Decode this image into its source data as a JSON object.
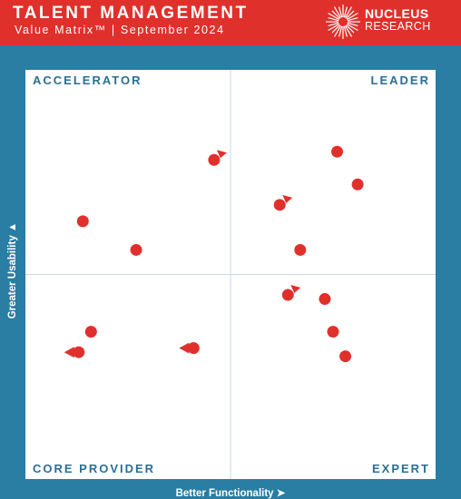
{
  "header": {
    "title": "TALENT MANAGEMENT",
    "subtitle": "Value Matrix™  | September 2024",
    "brand_name": "NUCLEUS",
    "brand_sub": "RESEARCH",
    "brand_icon": "nucleus-logo-icon"
  },
  "colors": {
    "header_bg": "#e0302c",
    "frame_bg": "#2a7da3",
    "quadrant_bg": "#ffffff",
    "label_color": "#2a6f93",
    "dot": "#e0302c"
  },
  "chart_data": {
    "type": "scatter",
    "title": "TALENT MANAGEMENT",
    "subtitle": "Value Matrix™  | September 2024",
    "xlabel": "Better Functionality",
    "ylabel": "Greater Usability",
    "xlim": [
      0,
      10
    ],
    "ylim": [
      0,
      10
    ],
    "grid": false,
    "quadrants": {
      "top_left": "ACCELERATOR",
      "top_right": "LEADER",
      "bottom_left": "CORE PROVIDER",
      "bottom_right": "EXPERT"
    },
    "points": [
      {
        "x": 4.6,
        "y": 7.8,
        "arrow": "up-right"
      },
      {
        "x": 1.4,
        "y": 6.3,
        "arrow": null
      },
      {
        "x": 2.7,
        "y": 5.6,
        "arrow": null
      },
      {
        "x": 7.6,
        "y": 8.0,
        "arrow": null
      },
      {
        "x": 8.1,
        "y": 7.2,
        "arrow": "none"
      },
      {
        "x": 6.2,
        "y": 6.7,
        "arrow": "up-right"
      },
      {
        "x": 6.7,
        "y": 5.6,
        "arrow": null
      },
      {
        "x": 6.4,
        "y": 4.5,
        "arrow": "up-right"
      },
      {
        "x": 7.3,
        "y": 4.4,
        "arrow": null
      },
      {
        "x": 7.5,
        "y": 3.6,
        "arrow": null
      },
      {
        "x": 7.8,
        "y": 3.0,
        "arrow": null
      },
      {
        "x": 1.6,
        "y": 3.6,
        "arrow": null
      },
      {
        "x": 4.1,
        "y": 3.2,
        "arrow": "left"
      },
      {
        "x": 1.3,
        "y": 3.1,
        "arrow": "left"
      }
    ]
  }
}
